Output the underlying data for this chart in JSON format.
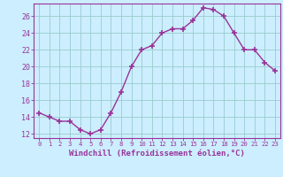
{
  "x": [
    0,
    1,
    2,
    3,
    4,
    5,
    6,
    7,
    8,
    9,
    10,
    11,
    12,
    13,
    14,
    15,
    16,
    17,
    18,
    19,
    20,
    21,
    22,
    23
  ],
  "y": [
    14.5,
    14.0,
    13.5,
    13.5,
    12.5,
    12.0,
    12.5,
    14.5,
    17.0,
    20.0,
    22.0,
    22.5,
    24.0,
    24.5,
    24.5,
    25.5,
    27.0,
    26.8,
    26.0,
    24.0,
    22.0,
    22.0,
    20.5,
    19.5
  ],
  "line_color": "#993399",
  "marker_color": "#993399",
  "bg_color": "#cceeff",
  "grid_color": "#99cccc",
  "axis_color": "#993399",
  "tick_color": "#993399",
  "xlabel": "Windchill (Refroidissement éolien,°C)",
  "ylim": [
    11.5,
    27.5
  ],
  "xlim": [
    -0.5,
    23.5
  ],
  "yticks": [
    12,
    14,
    16,
    18,
    20,
    22,
    24,
    26
  ],
  "xticks": [
    0,
    1,
    2,
    3,
    4,
    5,
    6,
    7,
    8,
    9,
    10,
    11,
    12,
    13,
    14,
    15,
    16,
    17,
    18,
    19,
    20,
    21,
    22,
    23
  ]
}
